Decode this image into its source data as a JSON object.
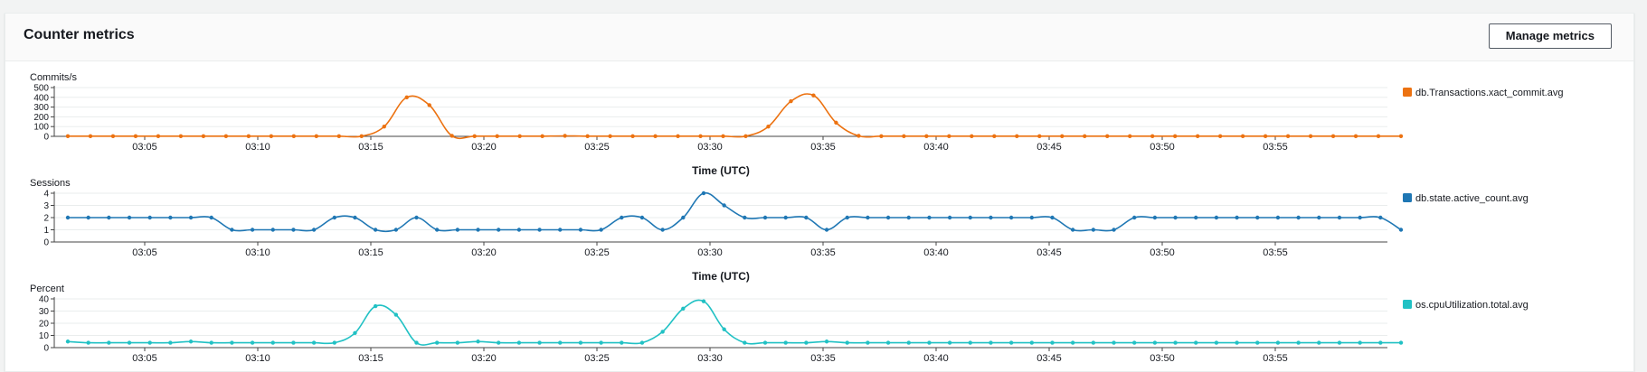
{
  "panel": {
    "title": "Counter metrics",
    "manage_button": "Manage metrics"
  },
  "chart_data": [
    {
      "type": "line",
      "ylabel": "Commits/s",
      "ylim": [
        0,
        500
      ],
      "yticks": [
        0,
        100,
        200,
        300,
        400,
        500
      ],
      "x_minutes": {
        "start": "03:02",
        "end": "03:59"
      },
      "xticks": [
        "03:05",
        "03:10",
        "03:15",
        "03:20",
        "03:25",
        "03:30",
        "03:35",
        "03:40",
        "03:45",
        "03:50",
        "03:55"
      ],
      "xlabel": "",
      "grid": true,
      "legend_position": "right",
      "series": [
        {
          "name": "db.Transactions.xact_commit.avg",
          "color": "#ec7211",
          "values": [
            2,
            2,
            2,
            2,
            2,
            2,
            2,
            2,
            2,
            2,
            2,
            2,
            2,
            2,
            100,
            400,
            320,
            5,
            2,
            2,
            2,
            2,
            5,
            2,
            2,
            2,
            2,
            2,
            2,
            2,
            2,
            100,
            360,
            420,
            140,
            5,
            2,
            2,
            2,
            2,
            2,
            2,
            2,
            2,
            2,
            2,
            2,
            2,
            2,
            2,
            2,
            2,
            2,
            2,
            2,
            2,
            2,
            2,
            2,
            2
          ]
        }
      ]
    },
    {
      "type": "line",
      "ylabel": "Sessions",
      "ylim": [
        0,
        4
      ],
      "yticks": [
        0,
        1,
        2,
        3,
        4
      ],
      "xticks": [
        "03:05",
        "03:10",
        "03:15",
        "03:20",
        "03:25",
        "03:30",
        "03:35",
        "03:40",
        "03:45",
        "03:50",
        "03:55"
      ],
      "xlabel": "Time (UTC)",
      "grid": true,
      "legend_position": "right",
      "series": [
        {
          "name": "db.state.active_count.avg",
          "color": "#1f77b4",
          "values": [
            2,
            2,
            2,
            2,
            2,
            2,
            2,
            2,
            1,
            1,
            1,
            1,
            1,
            2,
            2,
            1,
            1,
            2,
            1,
            1,
            1,
            1,
            1,
            1,
            1,
            1,
            1,
            2,
            2,
            1,
            2,
            4,
            3,
            2,
            2,
            2,
            2,
            1,
            2,
            2,
            2,
            2,
            2,
            2,
            2,
            2,
            2,
            2,
            2,
            1,
            1,
            1,
            2,
            2,
            2,
            2,
            2,
            2,
            2,
            2,
            2,
            2,
            2,
            2,
            2,
            1
          ]
        }
      ]
    },
    {
      "type": "line",
      "ylabel": "Percent",
      "ylim": [
        0,
        40
      ],
      "yticks": [
        0,
        10,
        20,
        30,
        40
      ],
      "xticks": [
        "03:05",
        "03:10",
        "03:15",
        "03:20",
        "03:25",
        "03:30",
        "03:35",
        "03:40",
        "03:45",
        "03:50",
        "03:55"
      ],
      "xlabel": "Time (UTC)",
      "grid": true,
      "legend_position": "right",
      "series": [
        {
          "name": "os.cpuUtilization.total.avg",
          "color": "#21c1c4",
          "values": [
            5,
            4,
            4,
            4,
            4,
            4,
            5,
            4,
            4,
            4,
            4,
            4,
            4,
            4,
            12,
            34,
            27,
            4,
            4,
            4,
            5,
            4,
            4,
            4,
            4,
            4,
            4,
            4,
            4,
            13,
            32,
            38,
            15,
            4,
            4,
            4,
            4,
            5,
            4,
            4,
            4,
            4,
            4,
            4,
            4,
            4,
            4,
            4,
            4,
            4,
            4,
            4,
            4,
            4,
            4,
            4,
            4,
            4,
            4,
            4,
            4,
            4,
            4,
            4,
            4,
            4
          ]
        }
      ]
    }
  ]
}
